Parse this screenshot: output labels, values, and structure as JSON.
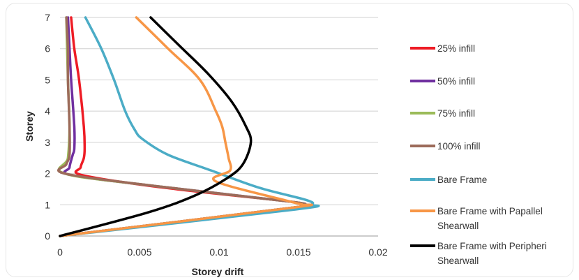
{
  "chart_data": {
    "type": "line",
    "title": "",
    "xlabel": "Storey drift",
    "ylabel": "Storey",
    "xlim": [
      0,
      0.02
    ],
    "ylim": [
      0,
      7
    ],
    "xticks": [
      0,
      0.005,
      0.01,
      0.015,
      0.02
    ],
    "xtick_labels": [
      "0",
      "0.005",
      "0.01",
      "0.015",
      "0.02"
    ],
    "yticks": [
      0,
      1,
      2,
      3,
      4,
      5,
      6,
      7
    ],
    "ytick_labels": [
      "0",
      "1",
      "2",
      "3",
      "4",
      "5",
      "6",
      "7"
    ],
    "grid": "horizontal",
    "legend_position": "right",
    "series": [
      {
        "name": "25% infill",
        "color": "#ee1c25",
        "points": [
          [
            0,
            0
          ],
          [
            0.0145,
            0.9
          ],
          [
            0.0152,
            1.0
          ],
          [
            0.0145,
            1.1
          ],
          [
            0.0065,
            1.55
          ],
          [
            0.0014,
            1.95
          ],
          [
            0.0013,
            2.2
          ],
          [
            0.0015,
            2.5
          ],
          [
            0.00155,
            2.8
          ],
          [
            0.0015,
            3.5
          ],
          [
            0.0012,
            5.0
          ],
          [
            0.0009,
            6.0
          ],
          [
            0.0007,
            7.0
          ]
        ]
      },
      {
        "name": "50% infill",
        "color": "#7030a0",
        "points": [
          [
            0,
            0
          ],
          [
            0.0145,
            0.9
          ],
          [
            0.0152,
            1.0
          ],
          [
            0.0145,
            1.1
          ],
          [
            0.006,
            1.6
          ],
          [
            0.0007,
            1.95
          ],
          [
            0.0006,
            2.2
          ],
          [
            0.0008,
            2.6
          ],
          [
            0.0009,
            2.8
          ],
          [
            0.0009,
            3.5
          ],
          [
            0.0007,
            5.0
          ],
          [
            0.0006,
            6.0
          ],
          [
            0.0005,
            7.0
          ]
        ]
      },
      {
        "name": "75% infill",
        "color": "#9bbb59",
        "points": [
          [
            0,
            0
          ],
          [
            0.0145,
            0.9
          ],
          [
            0.0152,
            1.0
          ],
          [
            0.0145,
            1.1
          ],
          [
            0.006,
            1.6
          ],
          [
            0.0003,
            2.0
          ],
          [
            0.0005,
            2.5
          ],
          [
            0.0006,
            3.5
          ],
          [
            0.0005,
            5.0
          ],
          [
            0.0004,
            7.0
          ]
        ]
      },
      {
        "name": "100% infill",
        "color": "#9c6b5a",
        "points": [
          [
            0,
            0
          ],
          [
            0.0145,
            0.9
          ],
          [
            0.0152,
            1.0
          ],
          [
            0.0145,
            1.1
          ],
          [
            0.006,
            1.6
          ],
          [
            0.0003,
            2.0
          ],
          [
            0.0004,
            2.3
          ],
          [
            0.0006,
            2.6
          ],
          [
            0.0006,
            3.5
          ],
          [
            0.0005,
            5.0
          ],
          [
            0.0005,
            6.0
          ],
          [
            0.0004,
            7.0
          ]
        ]
      },
      {
        "name": "Bare Frame",
        "color": "#4bacc6",
        "points": [
          [
            0,
            0
          ],
          [
            0.0148,
            0.85
          ],
          [
            0.0158,
            1.0
          ],
          [
            0.0155,
            1.15
          ],
          [
            0.0125,
            1.55
          ],
          [
            0.0095,
            2.1
          ],
          [
            0.0068,
            2.6
          ],
          [
            0.0052,
            3.1
          ],
          [
            0.0047,
            3.4
          ],
          [
            0.0041,
            4.0
          ],
          [
            0.0034,
            5.0
          ],
          [
            0.0026,
            6.0
          ],
          [
            0.0016,
            7.0
          ]
        ]
      },
      {
        "name": "Bare Frame with Papallel Shearwall",
        "color": "#f79646",
        "points": [
          [
            0,
            0
          ],
          [
            0.0145,
            0.9
          ],
          [
            0.0152,
            1.0
          ],
          [
            0.0145,
            1.1
          ],
          [
            0.0098,
            1.75
          ],
          [
            0.0107,
            2.1
          ],
          [
            0.0106,
            2.5
          ],
          [
            0.0104,
            3.0
          ],
          [
            0.0102,
            3.5
          ],
          [
            0.0098,
            4.0
          ],
          [
            0.0088,
            5.0
          ],
          [
            0.0068,
            6.0
          ],
          [
            0.0048,
            7.0
          ]
        ]
      },
      {
        "name": "Bare Frame with Peripheri Shearwall",
        "color": "#000000",
        "points": [
          [
            0,
            0
          ],
          [
            0.0055,
            0.75
          ],
          [
            0.0085,
            1.3
          ],
          [
            0.0105,
            1.85
          ],
          [
            0.0115,
            2.3
          ],
          [
            0.012,
            3.0
          ],
          [
            0.0117,
            3.5
          ],
          [
            0.0108,
            4.3
          ],
          [
            0.0093,
            5.2
          ],
          [
            0.0075,
            6.1
          ],
          [
            0.0057,
            7.0
          ]
        ]
      }
    ]
  }
}
